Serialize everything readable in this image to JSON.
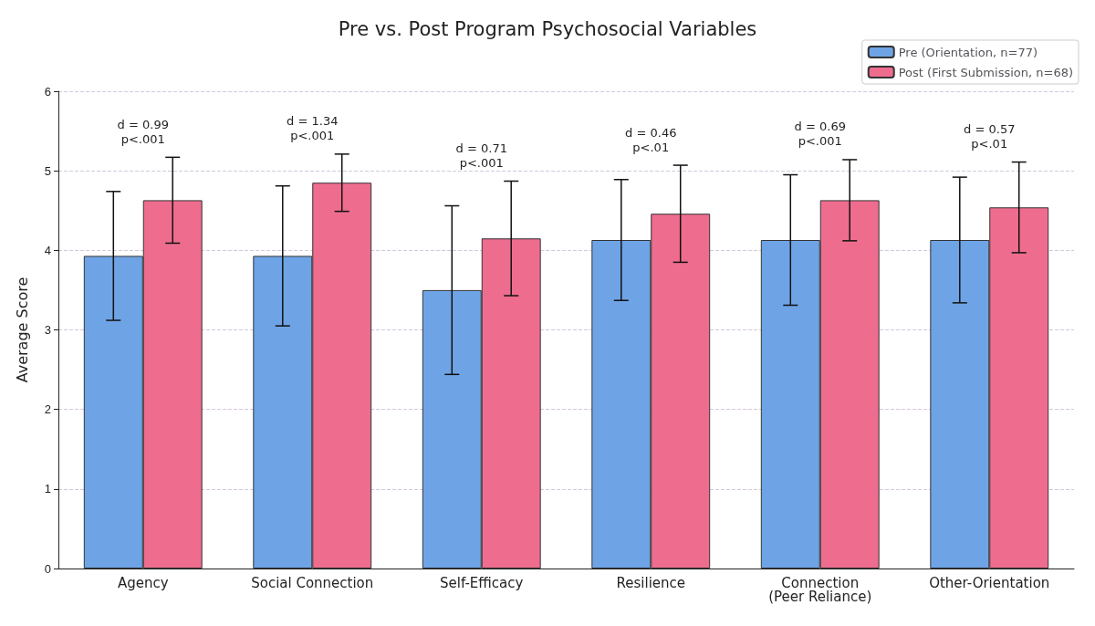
{
  "chart_data": {
    "type": "bar",
    "title": "Pre vs. Post Program Psychosocial Variables",
    "ylabel": "Average Score",
    "categories": [
      "Agency",
      "Social Connection",
      "Self-Efficacy",
      "Resilience",
      "Connection\n(Peer Reliance)",
      "Other-Orientation"
    ],
    "series": [
      {
        "name": "Pre (Orientation, n=77)",
        "color": "#6ea4e6",
        "values": [
          3.93,
          3.93,
          3.5,
          4.13,
          4.13,
          4.13
        ],
        "errors": [
          0.81,
          0.88,
          1.06,
          0.76,
          0.82,
          0.79
        ]
      },
      {
        "name": "Post (First Submission, n=68)",
        "color": "#ee6d8f",
        "values": [
          4.63,
          4.85,
          4.15,
          4.46,
          4.63,
          4.54
        ],
        "errors": [
          0.54,
          0.36,
          0.72,
          0.61,
          0.51,
          0.57
        ]
      }
    ],
    "ylim": [
      0,
      6
    ],
    "yticks": [
      0,
      1,
      2,
      3,
      4,
      5,
      6
    ],
    "grid": "y",
    "legend": "top right",
    "annotations": [
      "d = 0.99\np<.001",
      "d = 1.34\np<.001",
      "d = 0.71\np<.001",
      "d = 0.46\np<.01",
      "d = 0.69\np<.001",
      "d = 0.57\np<.01"
    ]
  }
}
